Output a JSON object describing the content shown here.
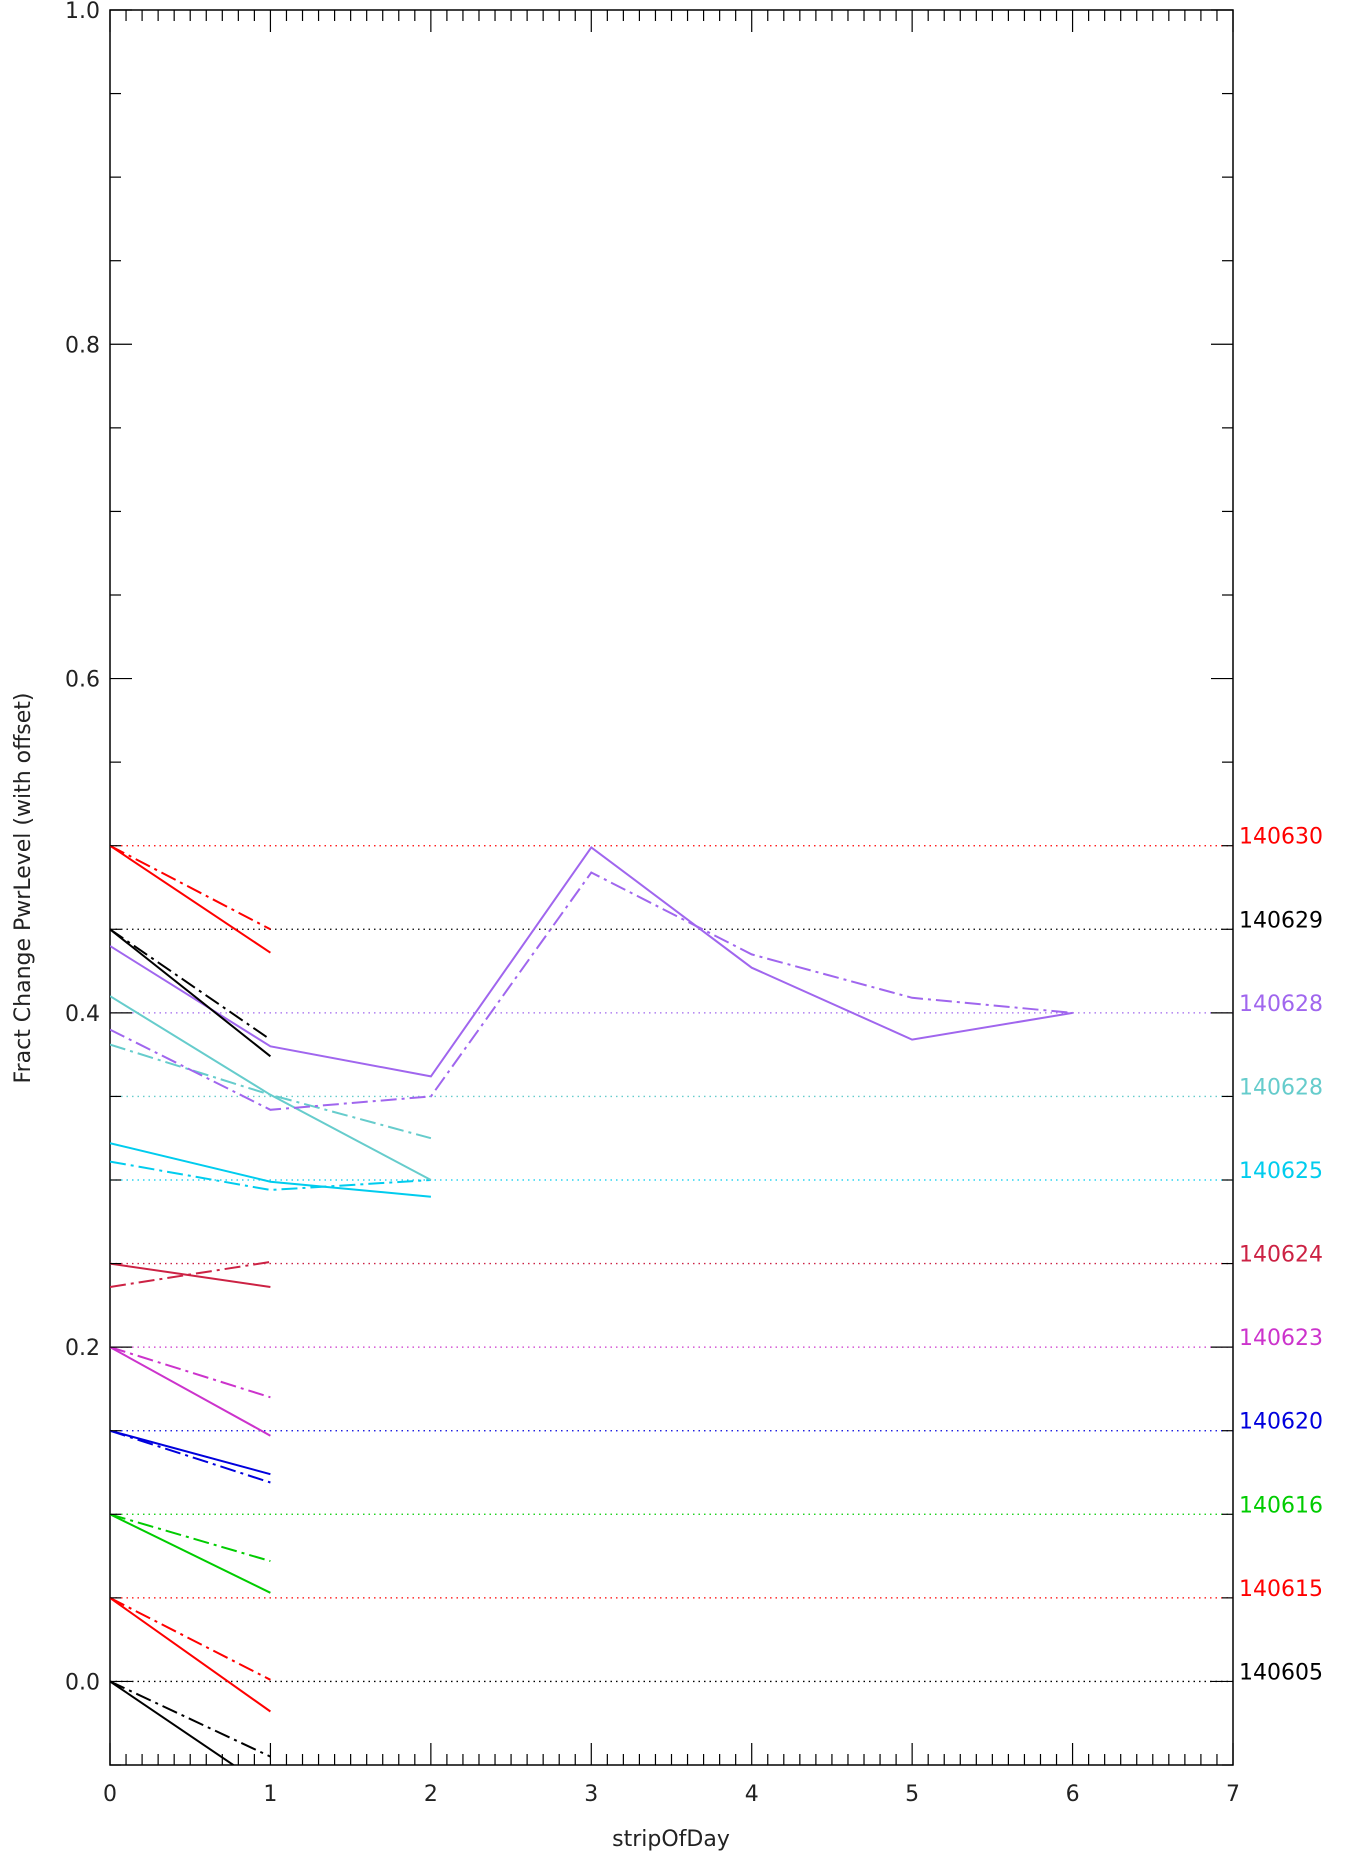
{
  "chart_data": {
    "type": "line",
    "title": "",
    "xlabel": "stripOfDay",
    "ylabel": "Fract Change PwrLevel (with offset)",
    "xlim": [
      0,
      7
    ],
    "ylim": [
      -0.05,
      1.0
    ],
    "x_ticks": [
      0,
      1,
      2,
      3,
      4,
      5,
      6,
      7
    ],
    "x_tick_labels": [
      "0",
      "1",
      "2",
      "3",
      "4",
      "5",
      "6",
      "7"
    ],
    "y_ticks": [
      0.0,
      0.2,
      0.4,
      0.6,
      0.8,
      1.0
    ],
    "y_tick_labels": [
      "0.0",
      "0.2",
      "0.4",
      "0.6",
      "0.8",
      "1.0"
    ],
    "grid": false,
    "legend": "none",
    "line_styles": {
      "solid": "solid",
      "dashdot": "dash-dot",
      "reference": "dotted"
    },
    "series": [
      {
        "day_label": "140605",
        "color": "#000000",
        "offset": 0.0,
        "solid": {
          "x": [
            0,
            1
          ],
          "y": [
            0.0,
            -0.065
          ]
        },
        "dashdot": {
          "x": [
            0,
            1
          ],
          "y": [
            0.0,
            -0.045
          ]
        }
      },
      {
        "day_label": "140615",
        "color": "#ff0000",
        "offset": 0.05,
        "solid": {
          "x": [
            0,
            1
          ],
          "y": [
            0.05,
            -0.018
          ]
        },
        "dashdot": {
          "x": [
            0,
            1
          ],
          "y": [
            0.05,
            0.001
          ]
        }
      },
      {
        "day_label": "140616",
        "color": "#00cc00",
        "offset": 0.1,
        "solid": {
          "x": [
            0,
            1
          ],
          "y": [
            0.1,
            0.053
          ]
        },
        "dashdot": {
          "x": [
            0,
            1
          ],
          "y": [
            0.1,
            0.072
          ]
        }
      },
      {
        "day_label": "140620",
        "color": "#0000dd",
        "offset": 0.15,
        "solid": {
          "x": [
            0,
            1
          ],
          "y": [
            0.15,
            0.124
          ]
        },
        "dashdot": {
          "x": [
            0,
            1
          ],
          "y": [
            0.15,
            0.119
          ]
        }
      },
      {
        "day_label": "140623",
        "color": "#cc33cc",
        "offset": 0.2,
        "solid": {
          "x": [
            0,
            1
          ],
          "y": [
            0.2,
            0.147
          ]
        },
        "dashdot": {
          "x": [
            0,
            1
          ],
          "y": [
            0.2,
            0.17
          ]
        }
      },
      {
        "day_label": "140624",
        "color": "#cc2244",
        "offset": 0.25,
        "solid": {
          "x": [
            0,
            1
          ],
          "y": [
            0.25,
            0.236
          ]
        },
        "dashdot": {
          "x": [
            0,
            1
          ],
          "y": [
            0.236,
            0.251
          ]
        }
      },
      {
        "day_label": "140625",
        "color": "#00ccee",
        "offset": 0.3,
        "solid": {
          "x": [
            0,
            1,
            2
          ],
          "y": [
            0.322,
            0.299,
            0.29
          ]
        },
        "dashdot": {
          "x": [
            0,
            1,
            2
          ],
          "y": [
            0.311,
            0.294,
            0.3
          ]
        }
      },
      {
        "day_label": "140628",
        "color": "#66cccc",
        "offset": 0.35,
        "solid": {
          "x": [
            0,
            1,
            2
          ],
          "y": [
            0.41,
            0.351,
            0.3
          ]
        },
        "dashdot": {
          "x": [
            0,
            1,
            2
          ],
          "y": [
            0.381,
            0.351,
            0.325
          ]
        }
      },
      {
        "day_label": "140628",
        "color": "#a066ee",
        "offset": 0.4,
        "solid": {
          "x": [
            0,
            1,
            2,
            3,
            4,
            5,
            6
          ],
          "y": [
            0.44,
            0.38,
            0.362,
            0.499,
            0.427,
            0.384,
            0.4
          ]
        },
        "dashdot": {
          "x": [
            0,
            1,
            2,
            3,
            4,
            5,
            6
          ],
          "y": [
            0.39,
            0.342,
            0.35,
            0.484,
            0.435,
            0.409,
            0.4
          ]
        }
      },
      {
        "day_label": "140629",
        "color": "#000000",
        "offset": 0.45,
        "solid": {
          "x": [
            0,
            1
          ],
          "y": [
            0.45,
            0.374
          ]
        },
        "dashdot": {
          "x": [
            0,
            1
          ],
          "y": [
            0.45,
            0.384
          ]
        }
      },
      {
        "day_label": "140630",
        "color": "#ff0000",
        "offset": 0.5,
        "solid": {
          "x": [
            0,
            1
          ],
          "y": [
            0.5,
            0.436
          ]
        },
        "dashdot": {
          "x": [
            0,
            1
          ],
          "y": [
            0.5,
            0.45
          ]
        }
      }
    ]
  }
}
